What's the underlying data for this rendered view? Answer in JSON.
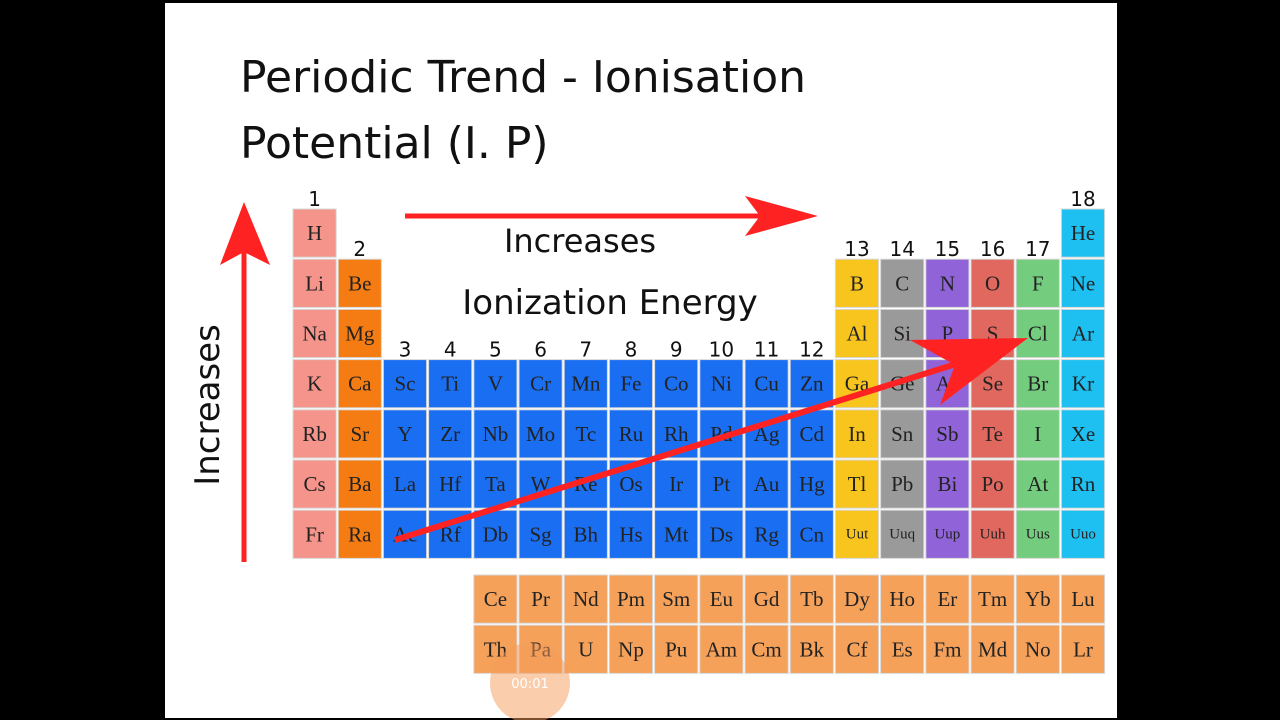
{
  "title_lines": [
    "Periodic Trend - Ionisation",
    "Potential (I. P)"
  ],
  "group_labels": [
    "1",
    "2",
    "3",
    "4",
    "5",
    "6",
    "7",
    "8",
    "9",
    "10",
    "11",
    "12",
    "13",
    "14",
    "15",
    "16",
    "17",
    "18"
  ],
  "periods": [
    [
      "H",
      "He"
    ],
    [
      "Li",
      "Be",
      "B",
      "C",
      "N",
      "O",
      "F",
      "Ne"
    ],
    [
      "Na",
      "Mg",
      "Al",
      "Si",
      "P",
      "S",
      "Cl",
      "Ar"
    ],
    [
      "K",
      "Ca",
      "Sc",
      "Ti",
      "V",
      "Cr",
      "Mn",
      "Fe",
      "Co",
      "Ni",
      "Cu",
      "Zn",
      "Ga",
      "Ge",
      "As",
      "Se",
      "Br",
      "Kr"
    ],
    [
      "Rb",
      "Sr",
      "Y",
      "Zr",
      "Nb",
      "Mo",
      "Tc",
      "Ru",
      "Rh",
      "Pd",
      "Ag",
      "Cd",
      "In",
      "Sn",
      "Sb",
      "Te",
      "I",
      "Xe"
    ],
    [
      "Cs",
      "Ba",
      "La",
      "Hf",
      "Ta",
      "W",
      "Re",
      "Os",
      "Ir",
      "Pt",
      "Au",
      "Hg",
      "Tl",
      "Pb",
      "Bi",
      "Po",
      "At",
      "Rn"
    ],
    [
      "Fr",
      "Ra",
      "Ac",
      "Rf",
      "Db",
      "Sg",
      "Bh",
      "Hs",
      "Mt",
      "Ds",
      "Rg",
      "Cn",
      "Uut",
      "Uuq",
      "Uup",
      "Uuh",
      "Uus",
      "Uuo"
    ]
  ],
  "f_block": [
    [
      "Ce",
      "Pr",
      "Nd",
      "Pm",
      "Sm",
      "Eu",
      "Gd",
      "Tb",
      "Dy",
      "Ho",
      "Er",
      "Tm",
      "Yb",
      "Lu"
    ],
    [
      "Th",
      "Pa",
      "U",
      "Np",
      "Pu",
      "Am",
      "Cm",
      "Bk",
      "Cf",
      "Es",
      "Fm",
      "Md",
      "No",
      "Lr"
    ]
  ],
  "annotations": {
    "horizontal": "Increases",
    "center": "Ionization Energy",
    "vertical": "Increases"
  },
  "video_time": "00:01"
}
